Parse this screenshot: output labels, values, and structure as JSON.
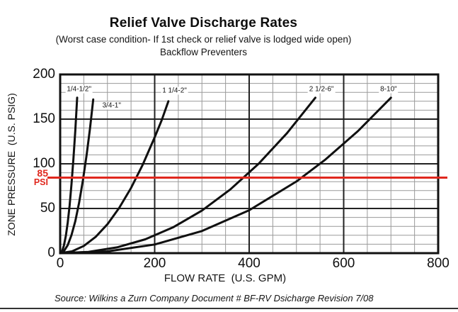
{
  "header": {
    "title": "Relief Valve Discharge Rates",
    "subtitle": "(Worst case condition- If 1st check or relief valve is lodged wide open)",
    "subtitle2": "Backflow Preventers"
  },
  "chart_data": {
    "type": "line",
    "title": "Relief Valve Discharge Rates",
    "xlabel": "FLOW RATE  (U.S. GPM)",
    "ylabel": "ZONE PRESSURE  (U.S. PSIG)",
    "xlim": [
      0,
      800
    ],
    "ylim": [
      0,
      200
    ],
    "x_major_ticks": [
      0,
      200,
      400,
      600,
      800
    ],
    "y_major_ticks": [
      0,
      50,
      100,
      150,
      200
    ],
    "x_minor_step": 50,
    "y_minor_step": 10,
    "grid": "major+minor",
    "legend_position": "labels-on-chart",
    "line_color": "#101010",
    "reference_line": {
      "axis": "y",
      "value": 85,
      "label_line1": "85",
      "label_line2": "PSI",
      "color": "#e0281e"
    },
    "series": [
      {
        "name": "1/4-1/2\"",
        "label_pos": {
          "q": 40,
          "p": 183
        },
        "points": [
          [
            0,
            0
          ],
          [
            4,
            2.1
          ],
          [
            8,
            8.6
          ],
          [
            12,
            19.3
          ],
          [
            16,
            34.4
          ],
          [
            20,
            53.7
          ],
          [
            24,
            77.3
          ],
          [
            28,
            105.3
          ],
          [
            32,
            137.5
          ],
          [
            36,
            174
          ]
        ]
      },
      {
        "name": "3/4-1\"",
        "label_pos": {
          "q": 109,
          "p": 165
        },
        "points": [
          [
            0,
            0
          ],
          [
            8,
            2.2
          ],
          [
            16,
            9.0
          ],
          [
            24,
            20.2
          ],
          [
            32,
            35.9
          ],
          [
            40,
            56.2
          ],
          [
            48,
            80.9
          ],
          [
            56,
            110.1
          ],
          [
            63,
            139.3
          ],
          [
            70,
            172
          ]
        ]
      },
      {
        "name": "1 1/4-2\"",
        "label_pos": {
          "q": 242,
          "p": 182
        },
        "points": [
          [
            0,
            0
          ],
          [
            25,
            2.0
          ],
          [
            50,
            8.1
          ],
          [
            75,
            18.2
          ],
          [
            100,
            32.4
          ],
          [
            125,
            50.7
          ],
          [
            150,
            72.9
          ],
          [
            175,
            99.3
          ],
          [
            200,
            129.7
          ],
          [
            215,
            149.0
          ],
          [
            229,
            170
          ]
        ]
      },
      {
        "name": "2 1/2-6\"",
        "label_pos": {
          "q": 553,
          "p": 183
        },
        "points": [
          [
            0,
            0
          ],
          [
            60,
            1.4
          ],
          [
            120,
            6.4
          ],
          [
            180,
            15.5
          ],
          [
            240,
            29.2
          ],
          [
            300,
            47.7
          ],
          [
            360,
            71.3
          ],
          [
            420,
            100.1
          ],
          [
            480,
            134.3
          ],
          [
            540,
            174
          ]
        ]
      },
      {
        "name": "8-10\"",
        "label_pos": {
          "q": 695,
          "p": 183
        },
        "points": [
          [
            0,
            0
          ],
          [
            100,
            2.0
          ],
          [
            200,
            9.7
          ],
          [
            300,
            24.8
          ],
          [
            400,
            48.0
          ],
          [
            500,
            80.2
          ],
          [
            560,
            104.2
          ],
          [
            630,
            136.5
          ],
          [
            700,
            174
          ]
        ]
      }
    ]
  },
  "footer": {
    "source": "Source: Wilkins a Zurn Company Document # BF-RV Dsicharge Revision 7/08"
  }
}
